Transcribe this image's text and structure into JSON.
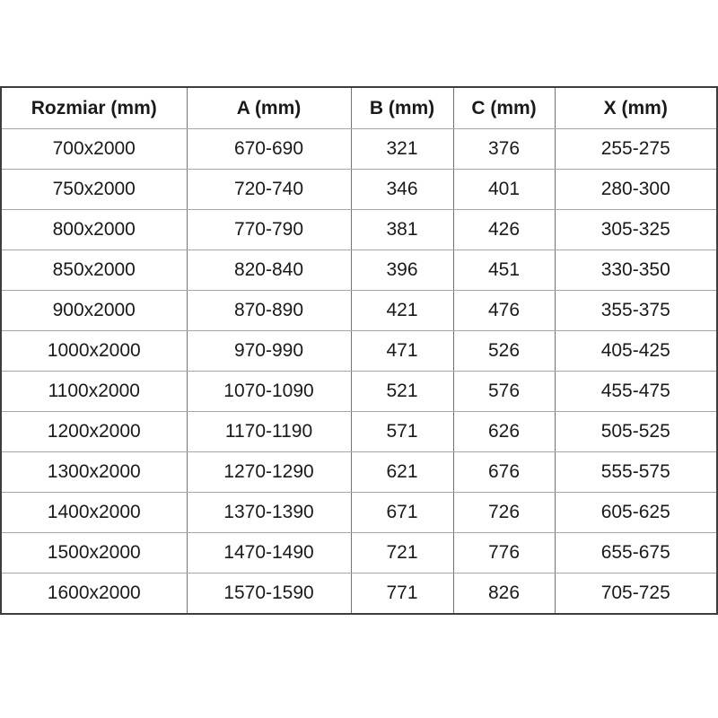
{
  "chart_data": {
    "type": "table",
    "columns": [
      "Rozmiar (mm)",
      "A (mm)",
      "B (mm)",
      "C (mm)",
      "X (mm)"
    ],
    "rows": [
      [
        "700x2000",
        "670-690",
        "321",
        "376",
        "255-275"
      ],
      [
        "750x2000",
        "720-740",
        "346",
        "401",
        "280-300"
      ],
      [
        "800x2000",
        "770-790",
        "381",
        "426",
        "305-325"
      ],
      [
        "850x2000",
        "820-840",
        "396",
        "451",
        "330-350"
      ],
      [
        "900x2000",
        "870-890",
        "421",
        "476",
        "355-375"
      ],
      [
        "1000x2000",
        "970-990",
        "471",
        "526",
        "405-425"
      ],
      [
        "1100x2000",
        "1070-1090",
        "521",
        "576",
        "455-475"
      ],
      [
        "1200x2000",
        "1170-1190",
        "571",
        "626",
        "505-525"
      ],
      [
        "1300x2000",
        "1270-1290",
        "621",
        "676",
        "555-575"
      ],
      [
        "1400x2000",
        "1370-1390",
        "671",
        "726",
        "605-625"
      ],
      [
        "1500x2000",
        "1470-1490",
        "721",
        "776",
        "655-675"
      ],
      [
        "1600x2000",
        "1570-1590",
        "771",
        "826",
        "705-725"
      ]
    ]
  },
  "colors": {
    "outer_border": "#3d3d3d",
    "inner_vertical_line": "#737373",
    "inner_horizontal_line": "#a6a6a6",
    "text": "#1a1a1a",
    "background": "#ffffff"
  }
}
